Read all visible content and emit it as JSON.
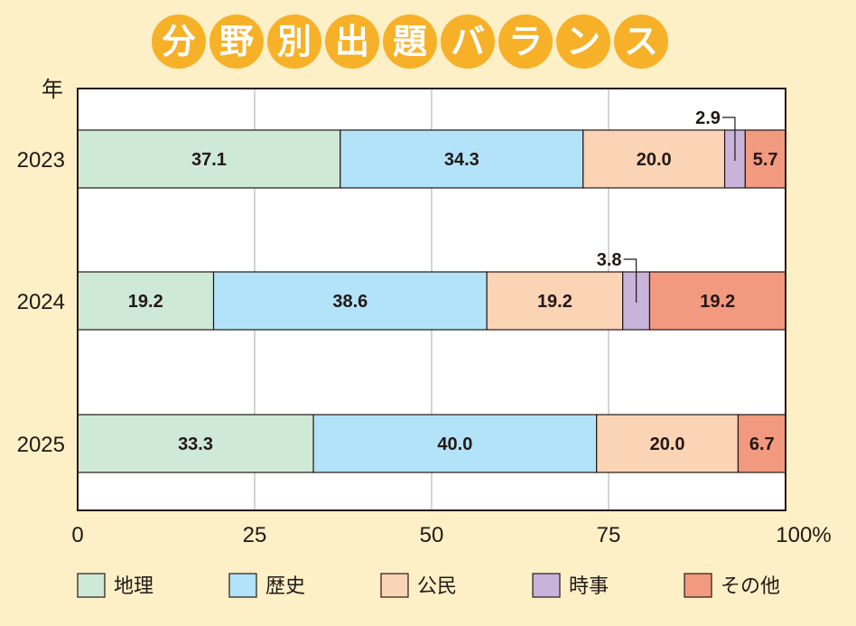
{
  "chart_data": {
    "type": "bar",
    "orientation": "horizontal",
    "stacked": true,
    "title": "分野別出題バランス",
    "ylabel": "年",
    "categories": [
      "2023",
      "2024",
      "2025"
    ],
    "xlim": [
      0,
      100
    ],
    "x_ticks": [
      "0",
      "25",
      "50",
      "75",
      "100%"
    ],
    "grid": true,
    "legend_position": "bottom",
    "series": [
      {
        "name": "地理",
        "color": "#cfe9d7",
        "values": [
          37.1,
          19.2,
          33.3
        ],
        "labels": [
          "37.1",
          "19.2",
          "33.3"
        ]
      },
      {
        "name": "歴史",
        "color": "#b3e3f8",
        "values": [
          34.3,
          38.6,
          40.0
        ],
        "labels": [
          "34.3",
          "38.6",
          "40.0"
        ]
      },
      {
        "name": "公民",
        "color": "#fbd3b5",
        "values": [
          20.0,
          19.2,
          20.0
        ],
        "labels": [
          "20.0",
          "19.2",
          "20.0"
        ]
      },
      {
        "name": "時事",
        "color": "#c8b3da",
        "values": [
          2.9,
          3.8,
          0
        ],
        "labels": [
          "2.9",
          "3.8",
          ""
        ]
      },
      {
        "name": "その他",
        "color": "#f29a80",
        "values": [
          5.7,
          19.2,
          6.7
        ],
        "labels": [
          "5.7",
          "19.2",
          "6.7"
        ]
      }
    ]
  }
}
